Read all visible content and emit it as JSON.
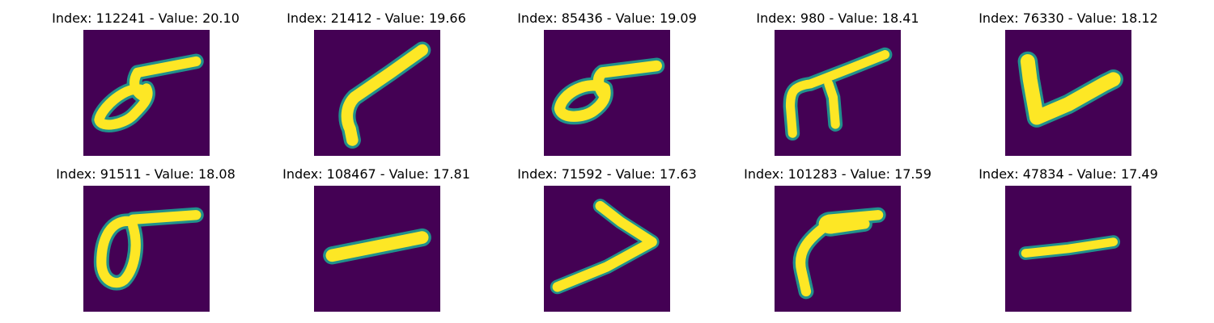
{
  "colors": {
    "background": "#440154",
    "ink": "#fde725",
    "edge": "#21918c",
    "title_text": "#000000"
  },
  "panels": [
    {
      "title": "Index: 112241 - Value: 20.10",
      "glyph": "loop-with-bar"
    },
    {
      "title": "Index: 21412 - Value: 19.66",
      "glyph": "slanted-stroke"
    },
    {
      "title": "Index: 85436 - Value: 19.09",
      "glyph": "loop-with-bar"
    },
    {
      "title": "Index: 980 - Value: 18.41",
      "glyph": "pi-shape"
    },
    {
      "title": "Index: 76330 - Value: 18.12",
      "glyph": "check-v"
    },
    {
      "title": "Index: 91511 - Value: 18.08",
      "glyph": "sigma-shape"
    },
    {
      "title": "Index: 108467 - Value: 17.81",
      "glyph": "dash"
    },
    {
      "title": "Index: 71592 - Value: 17.63",
      "glyph": "angle-greater-than"
    },
    {
      "title": "Index: 101283 - Value: 17.59",
      "glyph": "hook-stroke"
    },
    {
      "title": "Index: 47834 - Value: 17.49",
      "glyph": "dash"
    }
  ]
}
